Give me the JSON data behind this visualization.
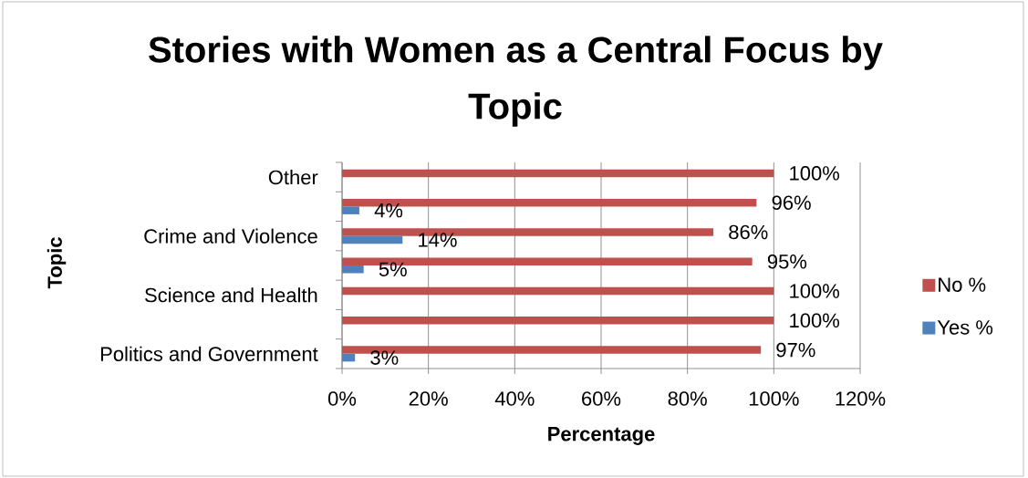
{
  "chart_data": {
    "type": "bar",
    "orientation": "horizontal",
    "title": "Stories with Women as a Central Focus by Topic",
    "xlabel": "Percentage",
    "ylabel": "Topic",
    "categories": [
      "Other",
      null,
      "Crime and Violence",
      null,
      "Science and Health",
      null,
      "Politics and Government"
    ],
    "series": [
      {
        "name": "No %",
        "color": "#c0504d",
        "values": [
          100,
          96,
          86,
          95,
          100,
          100,
          97
        ],
        "value_labels": [
          "100%",
          "96%",
          "86%",
          "95%",
          "100%",
          "100%",
          "97%"
        ]
      },
      {
        "name": "Yes %",
        "color": "#4f81bd",
        "values": [
          null,
          4,
          14,
          5,
          null,
          null,
          3
        ],
        "value_labels": [
          null,
          "4%",
          "14%",
          "5%",
          null,
          null,
          "3%"
        ]
      }
    ],
    "xlim": [
      0,
      120
    ],
    "xticks": [
      {
        "value": 0,
        "label": "0%"
      },
      {
        "value": 20,
        "label": "20%"
      },
      {
        "value": 40,
        "label": "40%"
      },
      {
        "value": 60,
        "label": "60%"
      },
      {
        "value": 80,
        "label": "80%"
      },
      {
        "value": 100,
        "label": "100%"
      },
      {
        "value": 120,
        "label": "120%"
      }
    ],
    "grid": "x",
    "legend": "right"
  }
}
